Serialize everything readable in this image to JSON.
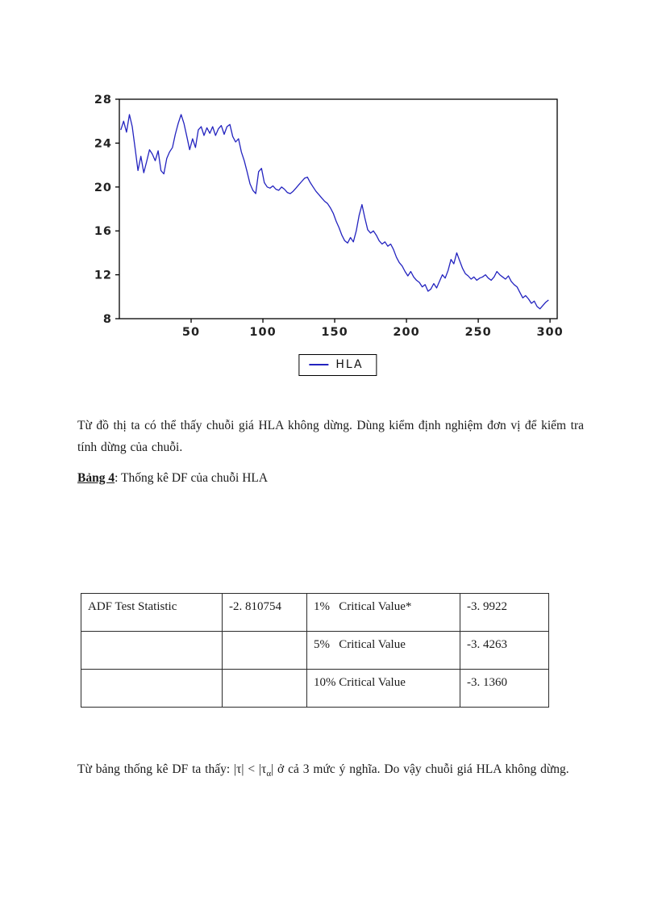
{
  "chart": {
    "legend_label": "HLA",
    "line_color": "#2323bf",
    "axis_color": "#000000",
    "tick_label_color": "#222222"
  },
  "chart_data": {
    "type": "line",
    "title": "",
    "xlabel": "",
    "ylabel": "",
    "xlim": [
      0,
      305
    ],
    "ylim": [
      8,
      28
    ],
    "x_ticks": [
      50,
      100,
      150,
      200,
      250,
      300
    ],
    "y_ticks": [
      8,
      12,
      16,
      20,
      24,
      28
    ],
    "grid": false,
    "legend": [
      "HLA"
    ],
    "legend_position": "bottom-center-boxed",
    "series": [
      {
        "name": "HLA",
        "color": "#2323bf",
        "x": [
          1,
          3,
          5,
          7,
          9,
          11,
          13,
          15,
          17,
          19,
          21,
          23,
          25,
          27,
          29,
          31,
          33,
          35,
          37,
          39,
          41,
          43,
          45,
          47,
          49,
          51,
          53,
          55,
          57,
          59,
          61,
          63,
          65,
          67,
          69,
          71,
          73,
          75,
          77,
          79,
          81,
          83,
          85,
          87,
          89,
          91,
          93,
          95,
          97,
          99,
          101,
          103,
          105,
          107,
          109,
          111,
          113,
          115,
          117,
          119,
          121,
          123,
          125,
          127,
          129,
          131,
          133,
          135,
          137,
          139,
          141,
          143,
          145,
          147,
          149,
          151,
          153,
          155,
          157,
          159,
          161,
          163,
          165,
          167,
          169,
          171,
          173,
          175,
          177,
          179,
          181,
          183,
          185,
          187,
          189,
          191,
          193,
          195,
          197,
          199,
          201,
          203,
          205,
          207,
          209,
          211,
          213,
          215,
          217,
          219,
          221,
          223,
          225,
          227,
          229,
          231,
          233,
          235,
          237,
          239,
          241,
          243,
          245,
          247,
          249,
          251,
          253,
          255,
          257,
          259,
          261,
          263,
          265,
          267,
          269,
          271,
          273,
          275,
          277,
          279,
          281,
          283,
          285,
          287,
          289,
          291,
          293,
          295,
          297,
          299
        ],
        "y": [
          25.2,
          26.0,
          25.0,
          26.6,
          25.5,
          23.5,
          21.5,
          22.8,
          21.3,
          22.3,
          23.4,
          23.0,
          22.4,
          23.3,
          21.5,
          21.2,
          22.6,
          23.2,
          23.6,
          24.8,
          25.8,
          26.6,
          25.8,
          24.6,
          23.4,
          24.4,
          23.6,
          25.2,
          25.5,
          24.7,
          25.4,
          24.9,
          25.5,
          24.7,
          25.3,
          25.6,
          24.8,
          25.5,
          25.7,
          24.6,
          24.1,
          24.4,
          23.2,
          22.4,
          21.4,
          20.3,
          19.7,
          19.4,
          21.4,
          21.7,
          20.4,
          20.0,
          19.9,
          20.1,
          19.8,
          19.7,
          20.0,
          19.8,
          19.5,
          19.4,
          19.6,
          19.9,
          20.2,
          20.5,
          20.8,
          20.9,
          20.4,
          20.0,
          19.6,
          19.3,
          19.0,
          18.7,
          18.5,
          18.1,
          17.6,
          16.9,
          16.3,
          15.6,
          15.1,
          14.9,
          15.4,
          15.0,
          16.0,
          17.4,
          18.4,
          17.2,
          16.1,
          15.8,
          16.0,
          15.6,
          15.1,
          14.8,
          15.0,
          14.6,
          14.8,
          14.3,
          13.6,
          13.1,
          12.8,
          12.3,
          11.9,
          12.3,
          11.8,
          11.5,
          11.3,
          10.9,
          11.1,
          10.5,
          10.7,
          11.2,
          10.8,
          11.4,
          12.0,
          11.7,
          12.4,
          13.4,
          13.0,
          14.0,
          13.3,
          12.6,
          12.1,
          11.9,
          11.6,
          11.8,
          11.5,
          11.7,
          11.8,
          12.0,
          11.7,
          11.5,
          11.8,
          12.3,
          12.0,
          11.8,
          11.6,
          11.9,
          11.4,
          11.1,
          10.9,
          10.4,
          9.9,
          10.1,
          9.8,
          9.4,
          9.6,
          9.1,
          8.9,
          9.2,
          9.5,
          9.7
        ]
      }
    ]
  },
  "paragraph1": "Từ đồ thị ta có thể thấy chuỗi giá HLA không dừng. Dùng kiểm định nghiệm đơn vị để kiểm tra tính dừng của chuỗi.",
  "caption": {
    "label": "Bảng 4",
    "rest": ": Thống kê DF của chuỗi HLA"
  },
  "table": {
    "rows": [
      {
        "c0": "ADF Test Statistic",
        "c1": "-2. 810754",
        "c2": "1%   Critical Value*",
        "c3": "-3. 9922"
      },
      {
        "c0": "",
        "c1": "",
        "c2": "5%   Critical Value",
        "c3": "-3. 4263"
      },
      {
        "c0": "",
        "c1": "",
        "c2": "10% Critical Value",
        "c3": "-3. 1360"
      }
    ]
  },
  "paragraph2": {
    "part1": "Từ bảng thống kê DF ta thấy: |τ| < |τ",
    "sub": "α",
    "part2": "| ở cả 3 mức ý nghĩa. Do vậy chuỗi giá HLA không dừng."
  }
}
